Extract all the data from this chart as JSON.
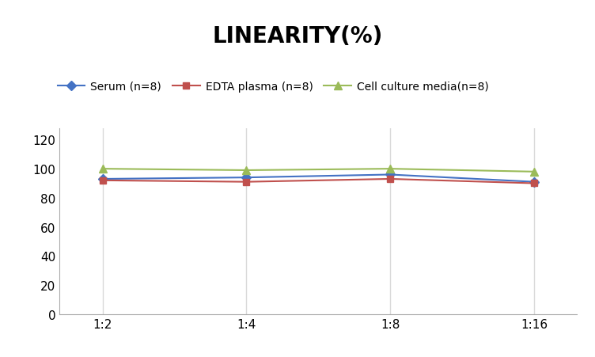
{
  "title": "LINEARITY(%)",
  "title_fontsize": 20,
  "title_fontweight": "bold",
  "title_fontfamily": "Arial",
  "x_labels": [
    "1:2",
    "1:4",
    "1:8",
    "1:16"
  ],
  "x_positions": [
    0,
    1,
    2,
    3
  ],
  "series": [
    {
      "label": "Serum (n=8)",
      "values": [
        93,
        94,
        96,
        91
      ],
      "color": "#4472C4",
      "marker": "D",
      "marker_size": 6,
      "linewidth": 1.5
    },
    {
      "label": "EDTA plasma (n=8)",
      "values": [
        92,
        91,
        93,
        90
      ],
      "color": "#C0504D",
      "marker": "s",
      "marker_size": 6,
      "linewidth": 1.5
    },
    {
      "label": "Cell culture media(n=8)",
      "values": [
        100,
        99,
        100,
        98
      ],
      "color": "#9BBB59",
      "marker": "^",
      "marker_size": 7,
      "linewidth": 1.5
    }
  ],
  "ylim": [
    0,
    128
  ],
  "yticks": [
    0,
    20,
    40,
    60,
    80,
    100,
    120
  ],
  "grid_color": "#D9D9D9",
  "background_color": "#FFFFFF",
  "legend_fontsize": 10,
  "axis_fontsize": 11,
  "fig_width": 7.52,
  "fig_height": 4.52
}
